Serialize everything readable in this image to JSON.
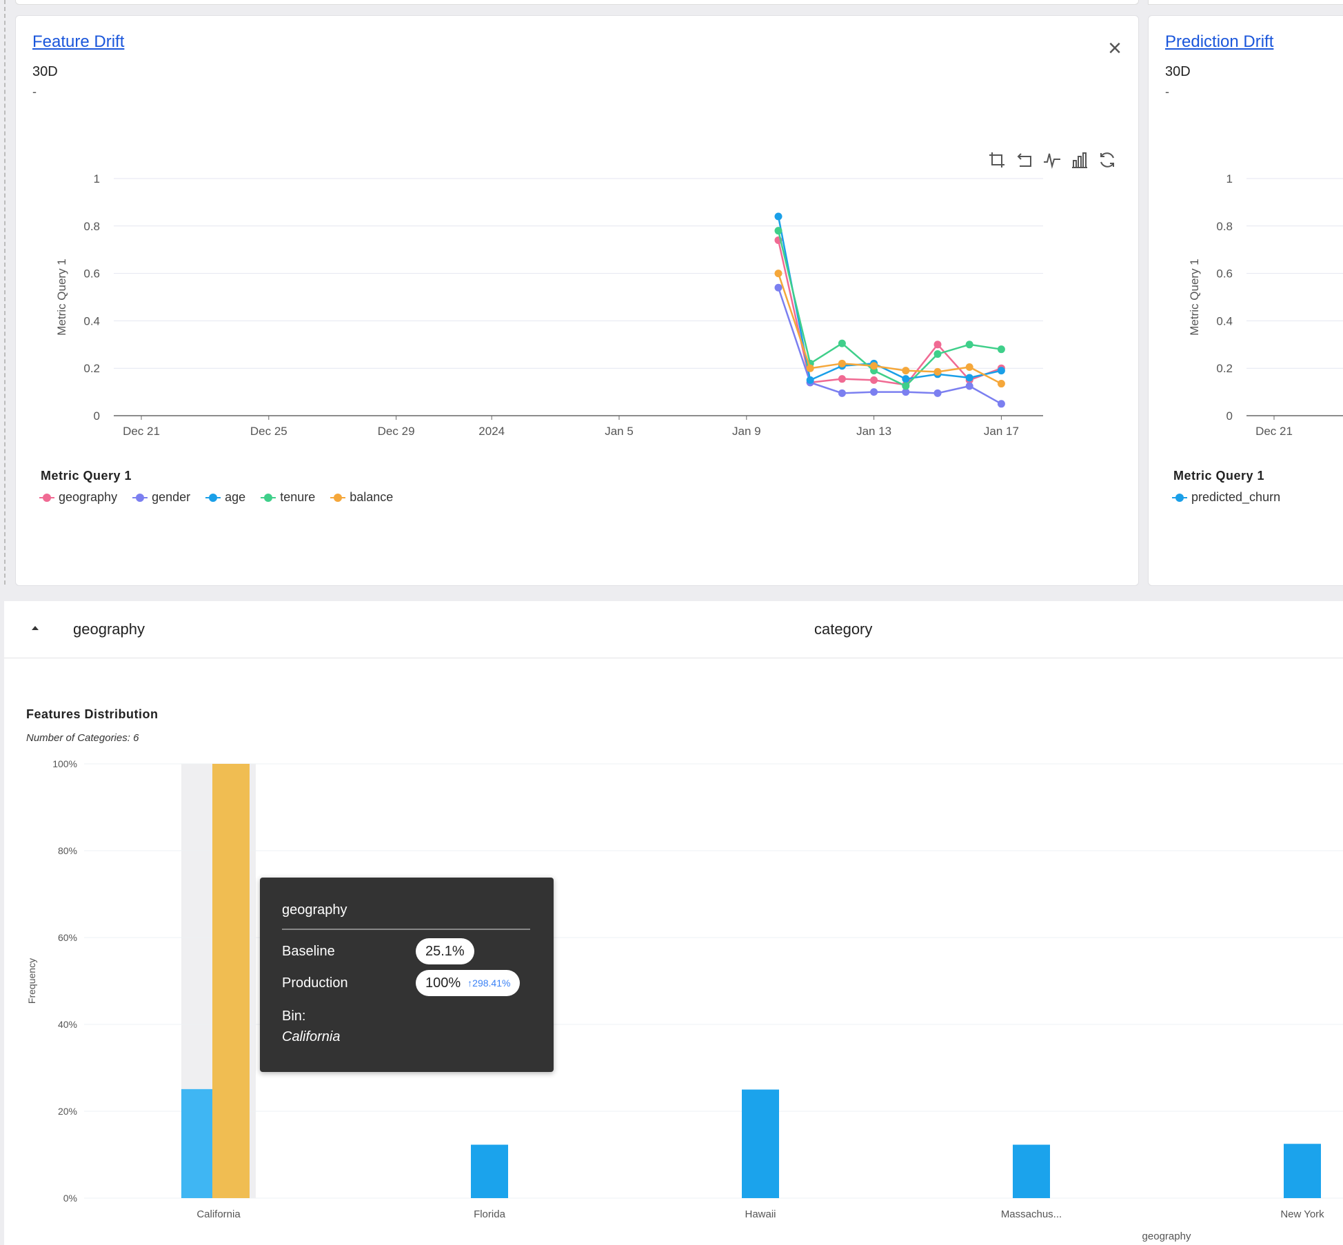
{
  "feature_drift": {
    "title": "Feature Drift",
    "period": "30D",
    "subtitle": "-",
    "close_label": "×",
    "legend_title": "Metric Query 1"
  },
  "prediction_drift": {
    "title": "Prediction Drift",
    "period": "30D",
    "subtitle": "-",
    "legend_title": "Metric Query 1"
  },
  "toolbar": {
    "icons": [
      "crop-zoom-icon",
      "zoom-reset-icon",
      "line-chart-icon",
      "bar-chart-icon",
      "refresh-icon"
    ]
  },
  "feature_row": {
    "feature": "geography",
    "type": "category"
  },
  "features_distribution": {
    "title": "Features Distribution",
    "subtitle": "Number of Categories: 6"
  },
  "tooltip": {
    "title": "geography",
    "baseline_label": "Baseline",
    "baseline_value": "25.1%",
    "production_label": "Production",
    "production_value": "100%",
    "production_delta": "298.41%",
    "bin_label": "Bin:",
    "bin_value": "California"
  },
  "chart_data": [
    {
      "type": "line",
      "ylabel": "Metric Query 1",
      "ylim": [
        0,
        1
      ],
      "yticks": [
        "0",
        "0.2",
        "0.4",
        "0.6",
        "0.8",
        "1"
      ],
      "xticks": [
        "Dec 21",
        "Dec 25",
        "Dec 29",
        "2024",
        "Jan 5",
        "Jan 9",
        "Jan 13",
        "Jan 17"
      ],
      "x": [
        "2024-01-10",
        "2024-01-11",
        "2024-01-12",
        "2024-01-13",
        "2024-01-14",
        "2024-01-15",
        "2024-01-16",
        "2024-01-17"
      ],
      "series": [
        {
          "name": "geography",
          "color": "#f06a93",
          "values": [
            0.74,
            0.14,
            0.155,
            0.15,
            0.13,
            0.3,
            0.15,
            0.2
          ]
        },
        {
          "name": "gender",
          "color": "#7b7ff0",
          "values": [
            0.54,
            0.14,
            0.095,
            0.1,
            0.1,
            0.095,
            0.125,
            0.05
          ]
        },
        {
          "name": "age",
          "color": "#1a9fe8",
          "values": [
            0.84,
            0.15,
            0.21,
            0.22,
            0.155,
            0.175,
            0.16,
            0.19
          ]
        },
        {
          "name": "tenure",
          "color": "#3fcf8a",
          "values": [
            0.78,
            0.22,
            0.305,
            0.19,
            0.125,
            0.26,
            0.3,
            0.28
          ]
        },
        {
          "name": "balance",
          "color": "#f5a73a",
          "values": [
            0.6,
            0.2,
            0.22,
            0.21,
            0.19,
            0.185,
            0.205,
            0.135
          ]
        }
      ]
    },
    {
      "type": "line",
      "ylabel": "Metric Query 1",
      "ylim": [
        0,
        1
      ],
      "yticks": [
        "0",
        "0.2",
        "0.4",
        "0.6",
        "0.8",
        "1"
      ],
      "xticks": [
        "Dec 21"
      ],
      "series": [
        {
          "name": "predicted_churn",
          "color": "#1a9fe8",
          "values": []
        }
      ]
    },
    {
      "type": "bar",
      "ylabel": "Frequency",
      "xlabel": "geography",
      "ylim": [
        0,
        100
      ],
      "yticks": [
        "0%",
        "20%",
        "40%",
        "60%",
        "80%",
        "100%"
      ],
      "categories": [
        "California",
        "Florida",
        "Hawaii",
        "Massachus...",
        "New York"
      ],
      "series": [
        {
          "name": "Baseline",
          "color": "#1ba3ec",
          "values": [
            25.1,
            12.3,
            25,
            12.3,
            12.5
          ]
        },
        {
          "name": "Production",
          "color": "#f0bd52",
          "values": [
            100,
            0,
            0,
            0,
            0
          ]
        }
      ],
      "highlighted_category": "California"
    }
  ]
}
